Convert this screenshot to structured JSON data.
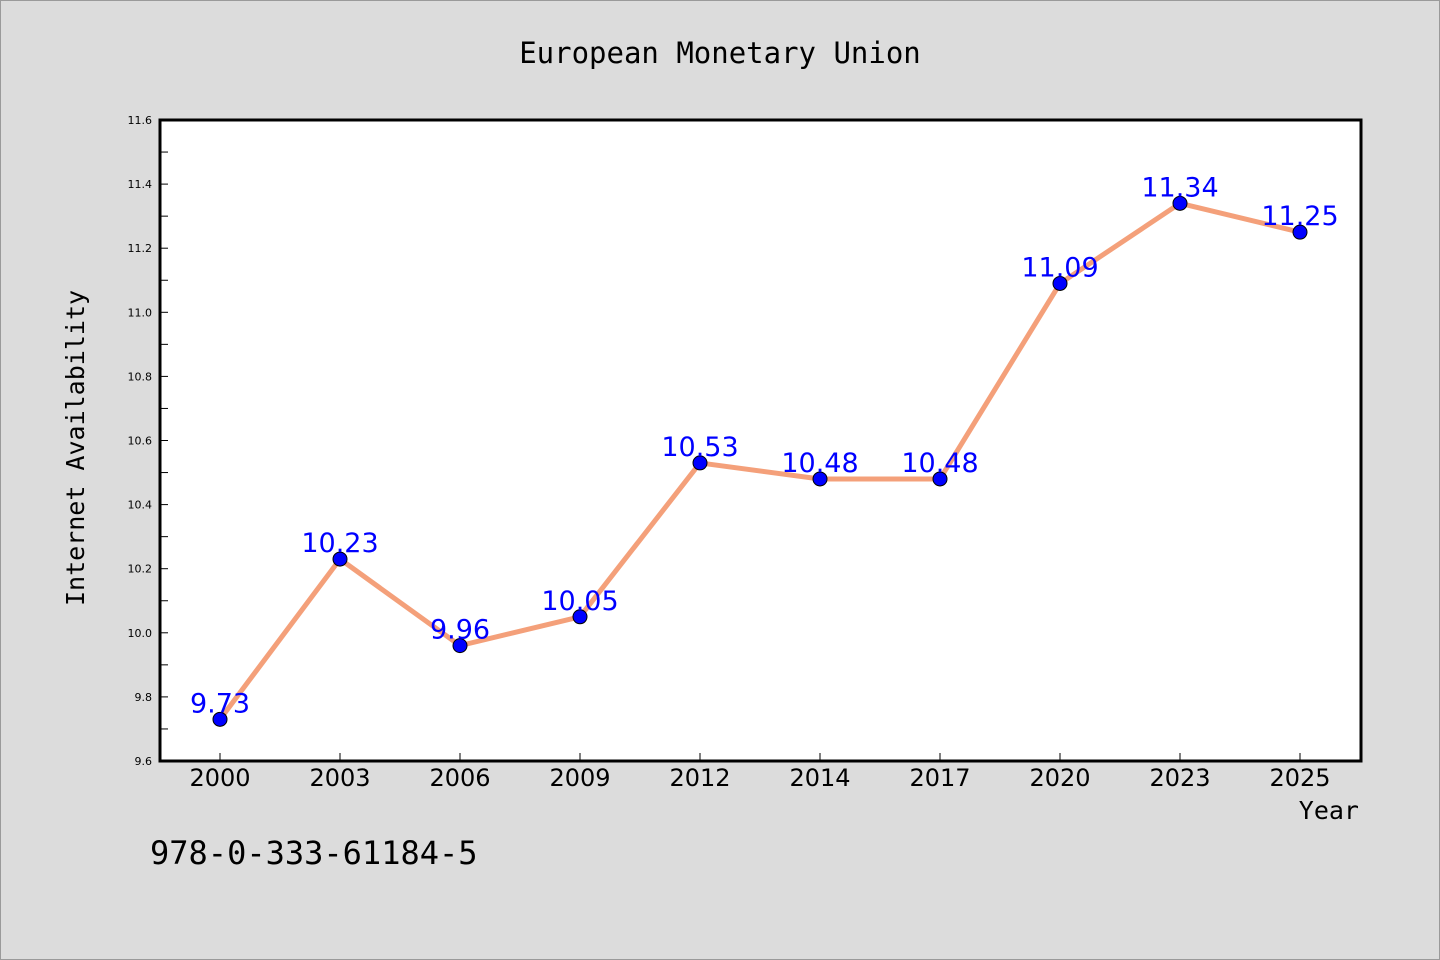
{
  "chart_data": {
    "type": "line",
    "title": "European Monetary Union",
    "xlabel": "Year",
    "ylabel": "Internet Availability",
    "categories": [
      "2000",
      "2003",
      "2006",
      "2009",
      "2012",
      "2014",
      "2017",
      "2020",
      "2023",
      "2025"
    ],
    "series": [
      {
        "values": [
          9.73,
          10.23,
          9.96,
          10.05,
          10.53,
          10.48,
          10.48,
          11.09,
          11.34,
          11.25
        ],
        "labels": [
          "9.73",
          "10.23",
          "9.96",
          "10.05",
          "10.53",
          "10.48",
          "10.48",
          "11.09",
          "11.34",
          "11.25"
        ]
      }
    ],
    "ylim": [
      9.6,
      11.6
    ],
    "yticks": [
      "9.6",
      "9.8",
      "10.0",
      "10.2",
      "10.4",
      "10.6",
      "10.8",
      "11.0",
      "11.2",
      "11.4",
      "11.6"
    ],
    "grid": false,
    "colors": {
      "line": "#f4a07a",
      "marker": "#0000ff",
      "marker_edge": "#000000",
      "label": "#0000ff",
      "background": "#dcdcdc",
      "plot_background": "#ffffff"
    }
  },
  "footer": {
    "isbn": "978-0-333-61184-5"
  }
}
